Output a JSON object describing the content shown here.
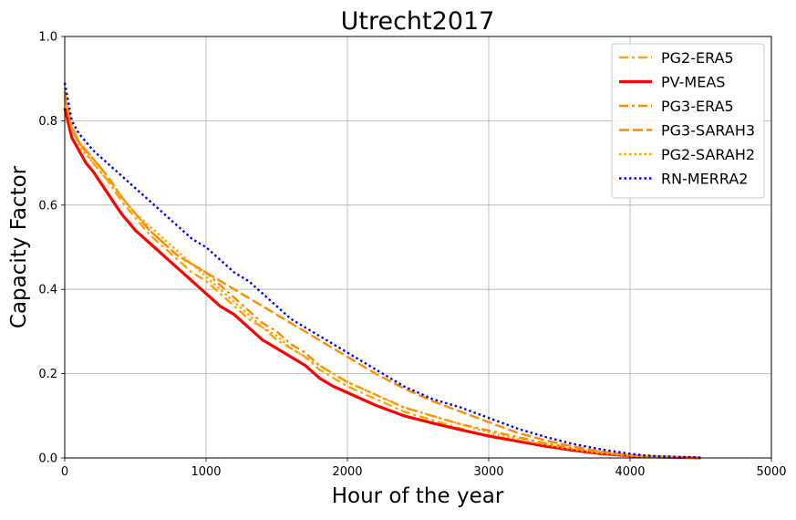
{
  "chart_data": {
    "type": "line",
    "title": "Utrecht2017",
    "xlabel": "Hour of the year",
    "ylabel": "Capacity Factor",
    "xlim": [
      0,
      5000
    ],
    "ylim": [
      0,
      1.0
    ],
    "xticks": [
      "0",
      "1000",
      "2000",
      "3000",
      "4000",
      "5000"
    ],
    "yticks": [
      "0.0",
      "0.2",
      "0.4",
      "0.6",
      "0.8",
      "1.0"
    ],
    "grid": true,
    "legend_position": "top-right",
    "series": [
      {
        "name": "PG2-ERA5",
        "color": "#ffa500",
        "style": "dashdot",
        "x": [
          0,
          50,
          100,
          200,
          300,
          400,
          500,
          600,
          700,
          800,
          900,
          1000,
          1100,
          1200,
          1300,
          1400,
          1500,
          1600,
          1700,
          1800,
          1900,
          2000,
          2200,
          2400,
          2600,
          2800,
          3000,
          3200,
          3400,
          3600,
          3800,
          4000,
          4200,
          4400,
          4500
        ],
        "y": [
          0.87,
          0.79,
          0.75,
          0.7,
          0.66,
          0.61,
          0.57,
          0.53,
          0.5,
          0.47,
          0.44,
          0.42,
          0.39,
          0.36,
          0.33,
          0.31,
          0.28,
          0.26,
          0.24,
          0.21,
          0.19,
          0.17,
          0.14,
          0.11,
          0.09,
          0.07,
          0.05,
          0.04,
          0.03,
          0.02,
          0.01,
          0.005,
          0.002,
          0.001,
          0.0
        ]
      },
      {
        "name": "PV-MEAS",
        "color": "#ff0000",
        "style": "solid",
        "x": [
          0,
          50,
          100,
          150,
          200,
          300,
          400,
          500,
          600,
          700,
          800,
          900,
          1000,
          1100,
          1200,
          1300,
          1400,
          1500,
          1600,
          1700,
          1800,
          1900,
          2000,
          2200,
          2400,
          2600,
          2800,
          3000,
          3200,
          3400,
          3600,
          3800,
          4000,
          4200,
          4400,
          4500
        ],
        "y": [
          0.83,
          0.76,
          0.73,
          0.7,
          0.68,
          0.63,
          0.58,
          0.54,
          0.51,
          0.48,
          0.45,
          0.42,
          0.39,
          0.36,
          0.34,
          0.31,
          0.28,
          0.26,
          0.24,
          0.22,
          0.19,
          0.17,
          0.155,
          0.125,
          0.1,
          0.083,
          0.067,
          0.052,
          0.04,
          0.028,
          0.018,
          0.01,
          0.005,
          0.002,
          0.001,
          0.0
        ]
      },
      {
        "name": "PG3-ERA5",
        "color": "#ff8c00",
        "style": "dashdot",
        "x": [
          0,
          50,
          100,
          200,
          300,
          400,
          500,
          600,
          700,
          800,
          900,
          1000,
          1100,
          1200,
          1300,
          1400,
          1500,
          1600,
          1700,
          1800,
          1900,
          2000,
          2200,
          2400,
          2600,
          2800,
          3000,
          3200,
          3400,
          3600,
          3800,
          4000,
          4200,
          4400,
          4500
        ],
        "y": [
          0.86,
          0.78,
          0.75,
          0.71,
          0.67,
          0.62,
          0.58,
          0.54,
          0.51,
          0.48,
          0.46,
          0.44,
          0.41,
          0.38,
          0.35,
          0.32,
          0.3,
          0.27,
          0.25,
          0.22,
          0.2,
          0.18,
          0.15,
          0.12,
          0.1,
          0.08,
          0.065,
          0.05,
          0.035,
          0.023,
          0.013,
          0.006,
          0.003,
          0.001,
          0.0
        ]
      },
      {
        "name": "PG3-SARAH3",
        "color": "#ff8c00",
        "style": "dashed",
        "x": [
          0,
          50,
          100,
          200,
          300,
          400,
          500,
          600,
          700,
          800,
          900,
          1000,
          1100,
          1200,
          1300,
          1400,
          1500,
          1600,
          1700,
          1800,
          1900,
          2000,
          2200,
          2400,
          2600,
          2800,
          3000,
          3200,
          3400,
          3600,
          3800,
          4000,
          4200,
          4400,
          4500
        ],
        "y": [
          0.86,
          0.78,
          0.75,
          0.71,
          0.67,
          0.62,
          0.58,
          0.54,
          0.51,
          0.48,
          0.46,
          0.44,
          0.42,
          0.4,
          0.38,
          0.36,
          0.34,
          0.32,
          0.3,
          0.28,
          0.26,
          0.24,
          0.2,
          0.165,
          0.135,
          0.11,
          0.085,
          0.06,
          0.042,
          0.027,
          0.015,
          0.007,
          0.003,
          0.001,
          0.0
        ]
      },
      {
        "name": "PG2-SARAH2",
        "color": "#ffa500",
        "style": "dotted",
        "x": [
          0,
          50,
          100,
          200,
          300,
          400,
          500,
          600,
          700,
          800,
          900,
          1000,
          1100,
          1200,
          1300,
          1400,
          1500,
          1600,
          1700,
          1800,
          1900,
          2000,
          2200,
          2400,
          2600,
          2800,
          3000,
          3200,
          3400,
          3600,
          3800,
          4000,
          4200,
          4400,
          4500
        ],
        "y": [
          0.86,
          0.78,
          0.74,
          0.7,
          0.66,
          0.62,
          0.58,
          0.55,
          0.52,
          0.49,
          0.46,
          0.43,
          0.4,
          0.37,
          0.34,
          0.31,
          0.29,
          0.26,
          0.24,
          0.22,
          0.2,
          0.18,
          0.15,
          0.12,
          0.1,
          0.08,
          0.06,
          0.045,
          0.032,
          0.02,
          0.011,
          0.005,
          0.002,
          0.001,
          0.0
        ]
      },
      {
        "name": "RN-MERRA2",
        "color": "#0000ff",
        "style": "dotted",
        "x": [
          0,
          50,
          100,
          200,
          300,
          400,
          500,
          600,
          700,
          800,
          900,
          1000,
          1100,
          1200,
          1300,
          1400,
          1500,
          1600,
          1700,
          1800,
          1900,
          2000,
          2200,
          2400,
          2600,
          2800,
          3000,
          3200,
          3400,
          3600,
          3800,
          4000,
          4100,
          4200,
          4400,
          4500
        ],
        "y": [
          0.89,
          0.8,
          0.77,
          0.73,
          0.7,
          0.67,
          0.64,
          0.61,
          0.58,
          0.55,
          0.52,
          0.5,
          0.47,
          0.44,
          0.42,
          0.39,
          0.36,
          0.33,
          0.31,
          0.29,
          0.27,
          0.25,
          0.21,
          0.17,
          0.14,
          0.12,
          0.095,
          0.07,
          0.05,
          0.033,
          0.02,
          0.01,
          0.006,
          0.004,
          0.002,
          0.001
        ]
      }
    ]
  }
}
